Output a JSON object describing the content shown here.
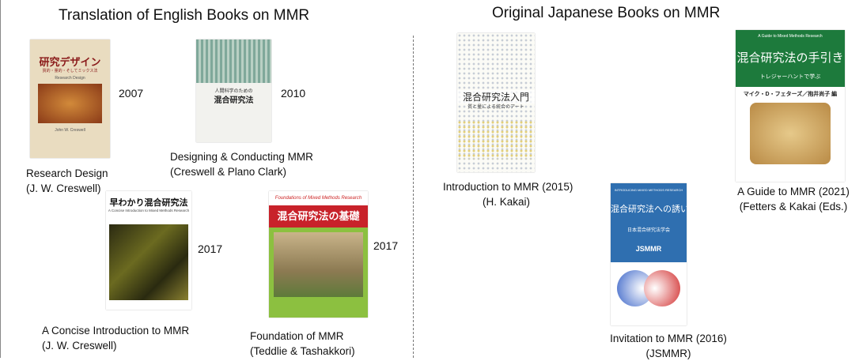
{
  "sections": [
    {
      "title": "Translation of English Books on MMR",
      "books": [
        {
          "cover": [
            "研究デザイン",
            "質的・量的・そしてミックス法",
            "Research Design",
            "John W. Creswell"
          ],
          "year": "2007",
          "caption": [
            "Research Design",
            "(J. W. Creswell)"
          ]
        },
        {
          "cover": [
            "人間科学のための",
            "混合研究法"
          ],
          "year": "2010",
          "caption": [
            "Designing & Conducting MMR",
            "(Creswell & Plano Clark)"
          ]
        },
        {
          "cover": [
            "早わかり混合研究法",
            "A Concise Introduction to Mixed Methods Research"
          ],
          "year": "2017",
          "caption": [
            "A Concise Introduction to MMR",
            "(J. W. Creswell)"
          ]
        },
        {
          "cover": [
            "Foundations of Mixed Methods Research",
            "混合研究法の基礎"
          ],
          "year": "2017",
          "caption": [
            "Foundation of MMR",
            "(Teddlie & Tashakkori)"
          ]
        }
      ]
    },
    {
      "title": "Original Japanese Books on MMR",
      "books": [
        {
          "cover": [
            "混合研究法入門",
            "質と量による統合のアート"
          ],
          "caption": [
            "Introduction to MMR (2015)",
            "(H. Kakai)"
          ]
        },
        {
          "cover": [
            "INTRODUCING MIXED METHODS RESEARCH",
            "混合研究法への誘い",
            "日本混合研究法学会",
            "JSMMR"
          ],
          "caption": [
            "Invitation to MMR (2016)",
            "(JSMMR)"
          ]
        },
        {
          "cover": [
            "A Guide to Mixed Methods Research",
            "混合研究法の手引き",
            "トレジャーハントで学ぶ",
            "マイク・D・フェターズ／抱井尚子 編"
          ],
          "caption": [
            "A Guide to MMR (2021)",
            "(Fetters & Kakai (Eds.)"
          ]
        }
      ]
    }
  ]
}
